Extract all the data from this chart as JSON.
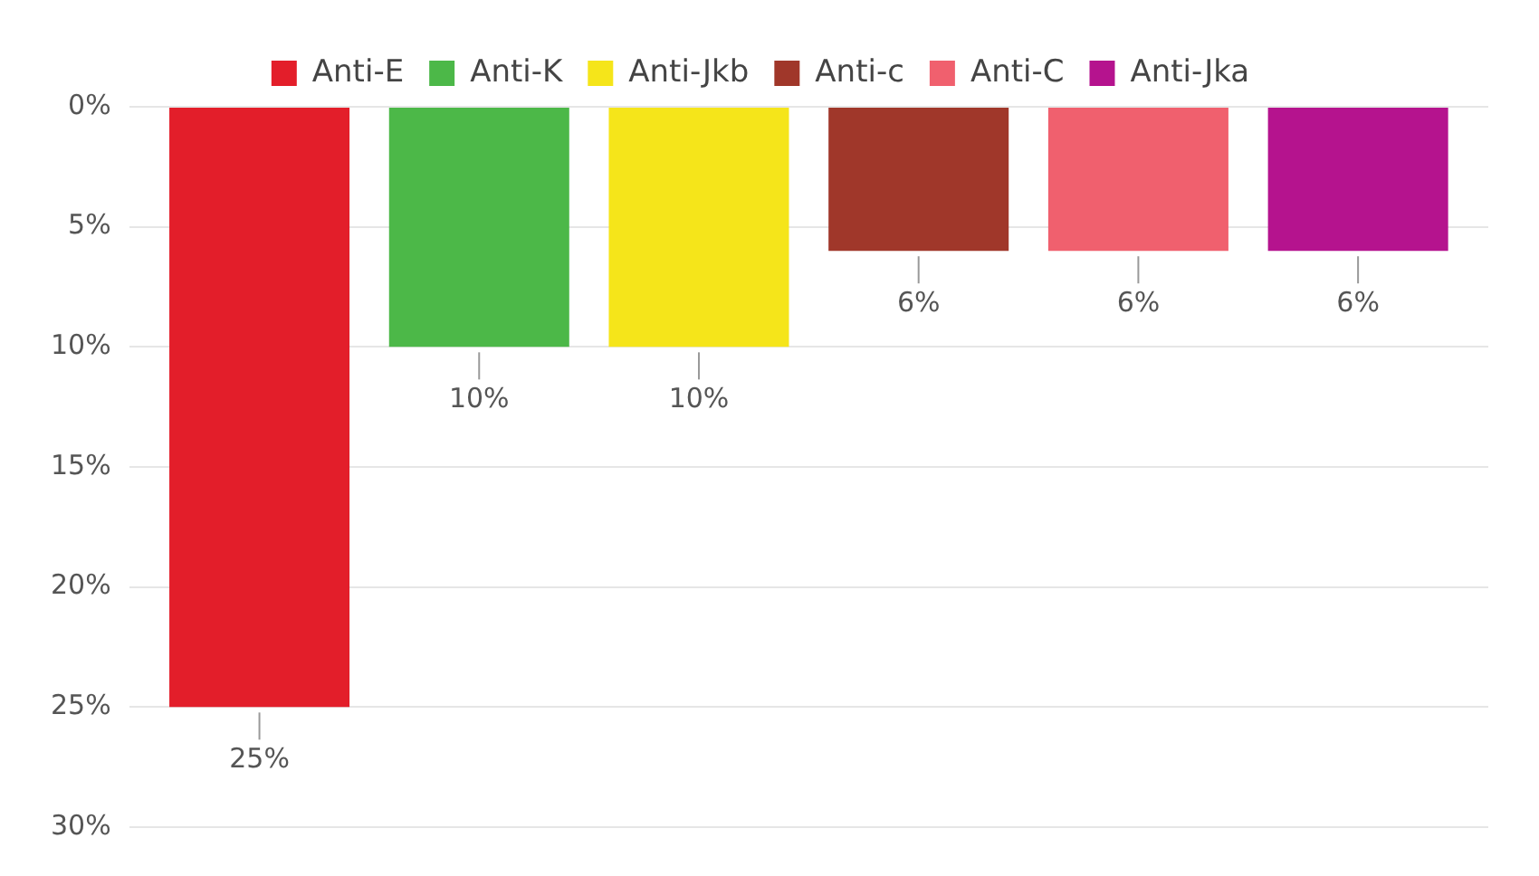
{
  "chart_data": {
    "type": "bar",
    "categories": [
      null
    ],
    "series": [
      {
        "name": "Anti-E",
        "color": "#e31e2a",
        "values": [
          25
        ],
        "value_labels": [
          "25%"
        ]
      },
      {
        "name": "Anti-K",
        "color": "#4cb848",
        "values": [
          10
        ],
        "value_labels": [
          "10%"
        ]
      },
      {
        "name": "Anti-Jkb",
        "color": "#f5e51a",
        "values": [
          10
        ],
        "value_labels": [
          "10%"
        ]
      },
      {
        "name": "Anti-c",
        "color": "#a0372a",
        "values": [
          6
        ],
        "value_labels": [
          "6%"
        ]
      },
      {
        "name": "Anti-C",
        "color": "#f0606e",
        "values": [
          6
        ],
        "value_labels": [
          "6%"
        ]
      },
      {
        "name": "Anti-Jka",
        "color": "#b5138e",
        "values": [
          6
        ],
        "value_labels": [
          "6%"
        ]
      }
    ],
    "ylim": [
      30,
      0
    ],
    "yticks": [
      {
        "value": 0,
        "label": "0%"
      },
      {
        "value": 5,
        "label": "5%"
      },
      {
        "value": 10,
        "label": "10%"
      },
      {
        "value": 15,
        "label": "15%"
      },
      {
        "value": 20,
        "label": "20%"
      },
      {
        "value": 25,
        "label": "25%"
      },
      {
        "value": 30,
        "label": "30%"
      }
    ],
    "grid": "y",
    "legend": "top",
    "tick_labels": "y"
  }
}
